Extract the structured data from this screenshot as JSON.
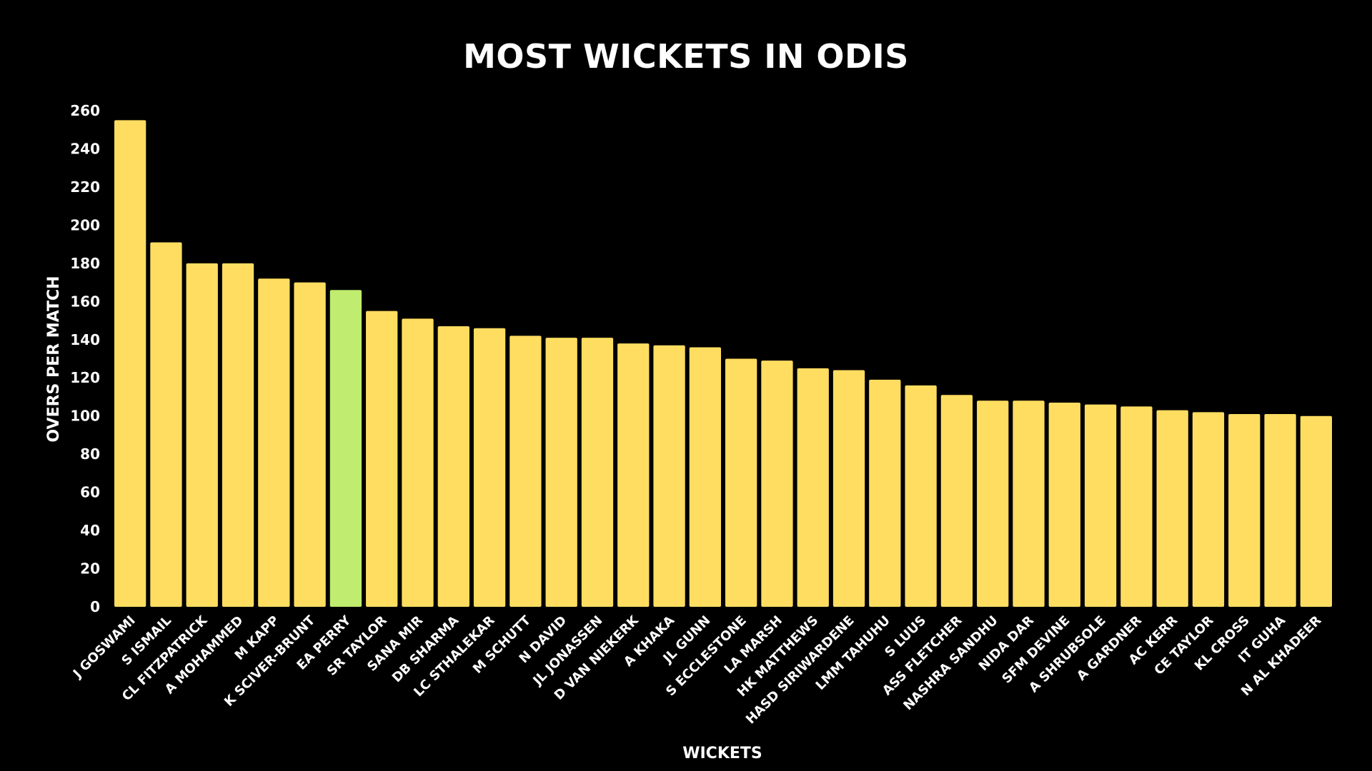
{
  "chart_data": {
    "type": "bar",
    "title": "MOST WICKETS IN ODIS",
    "xlabel": "WICKETS",
    "ylabel": "OVERS PER MATCH",
    "ylim": [
      0,
      260
    ],
    "yticks": [
      0,
      20,
      40,
      60,
      80,
      100,
      120,
      140,
      160,
      180,
      200,
      220,
      240,
      260
    ],
    "grid": false,
    "legend": "none",
    "categories": [
      "J GOSWAMI",
      "S ISMAIL",
      "CL FITZPATRICK",
      "A MOHAMMED",
      "M KAPP",
      "K SCIVER-BRUNT",
      "EA PERRY",
      "SR TAYLOR",
      "SANA MIR",
      "DB SHARMA",
      "LC STHALEKAR",
      "M SCHUTT",
      "N DAVID",
      "JL JONASSEN",
      "D VAN NIEKERK",
      "A KHAKA",
      "JL GUNN",
      "S ECCLESTONE",
      "LA MARSH",
      "HK MATTHEWS",
      "HASD SIRIWARDENE",
      "LMM TAHUHU",
      "S LUUS",
      "ASS FLETCHER",
      "NASHRA SANDHU",
      "NIDA DAR",
      "SFM DEVINE",
      "A SHRUBSOLE",
      "A GARDNER",
      "AC KERR",
      "CE TAYLOR",
      "KL CROSS",
      "IT GUHA",
      "N AL KHADEER"
    ],
    "values": [
      255,
      191,
      180,
      180,
      172,
      170,
      166,
      155,
      151,
      147,
      146,
      142,
      141,
      141,
      138,
      137,
      136,
      130,
      129,
      125,
      124,
      119,
      116,
      111,
      108,
      108,
      107,
      106,
      105,
      103,
      102,
      101,
      101,
      100
    ],
    "highlight_category": "EA PERRY",
    "colors": {
      "bar": "#ffdd61",
      "highlight": "#c0ec6f",
      "background": "#000000",
      "text": "#ffffff"
    }
  }
}
